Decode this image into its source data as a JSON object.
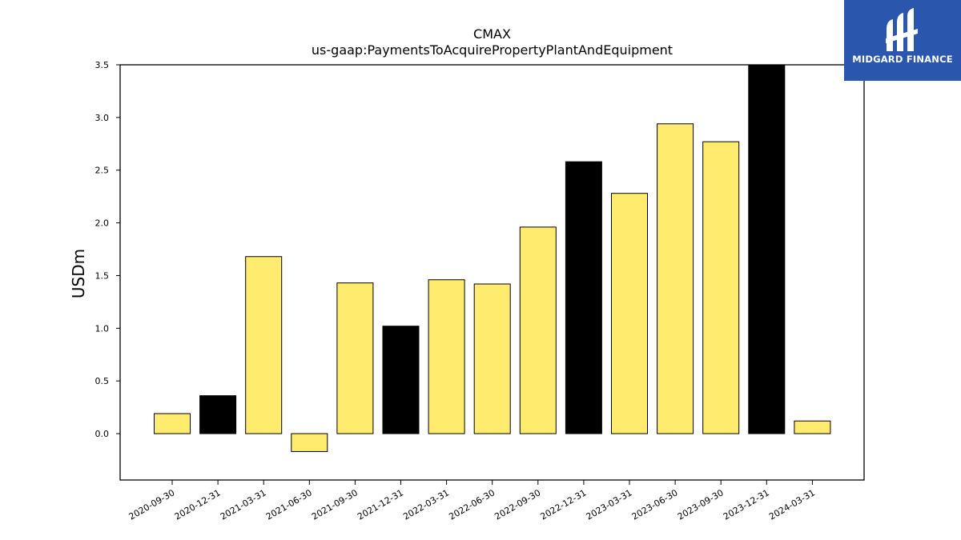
{
  "chart_data": {
    "type": "bar",
    "title": "CMAX",
    "subtitle": "us-gaap:PaymentsToAcquirePropertyPlantAndEquipment",
    "xlabel": "",
    "ylabel": "USDm",
    "ylim": [
      -0.44,
      3.5
    ],
    "yticks": [
      "0.0",
      "0.5",
      "1.0",
      "1.5",
      "2.0",
      "2.5",
      "3.0",
      "3.5"
    ],
    "grid": false,
    "categories": [
      "2020-09-30",
      "2020-12-31",
      "2021-03-31",
      "2021-06-30",
      "2021-09-30",
      "2021-12-31",
      "2022-03-31",
      "2022-06-30",
      "2022-09-30",
      "2022-12-31",
      "2023-03-31",
      "2023-06-30",
      "2023-09-30",
      "2023-12-31",
      "2024-03-31"
    ],
    "values": [
      0.19,
      0.36,
      1.68,
      -0.17,
      1.43,
      1.02,
      1.46,
      1.42,
      1.96,
      2.58,
      2.28,
      2.94,
      2.77,
      3.5,
      0.12
    ],
    "fiscal_year_end": [
      false,
      true,
      false,
      false,
      false,
      true,
      false,
      false,
      false,
      true,
      false,
      false,
      false,
      true,
      false
    ],
    "colors": {
      "quarter": "#ffeb6e",
      "year_end": "#000000",
      "edge": "#000000"
    }
  },
  "logo": {
    "brand": "MIDGARD FINANCE",
    "icon": "midgard-logo-icon",
    "background": "#2a56ad"
  }
}
